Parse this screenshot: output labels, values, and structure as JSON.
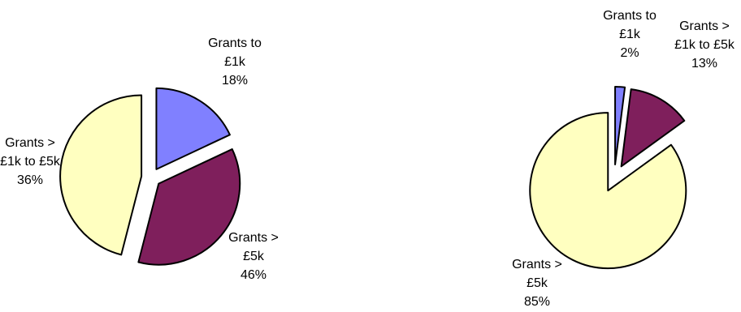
{
  "chart_data": [
    {
      "type": "pie",
      "title": "",
      "exploded": true,
      "slices": [
        {
          "lines": [
            "Grants to",
            "£1k",
            "18%"
          ],
          "value": 18,
          "color": "#8080ff"
        },
        {
          "lines": [
            "Grants >",
            "£1k to £5k",
            "36%"
          ],
          "value": 36,
          "color": "#7f1f5c"
        },
        {
          "lines": [
            "Grants >",
            "£5k",
            "46%"
          ],
          "value": 46,
          "color": "#ffffc0"
        }
      ]
    },
    {
      "type": "pie",
      "title": "",
      "exploded": true,
      "slices": [
        {
          "lines": [
            "Grants to",
            "£1k",
            "2%"
          ],
          "value": 2,
          "color": "#8080ff"
        },
        {
          "lines": [
            "Grants >",
            "£1k to £5k",
            "13%"
          ],
          "value": 13,
          "color": "#7f1f5c"
        },
        {
          "lines": [
            "Grants >",
            "£5k",
            "85%"
          ],
          "value": 85,
          "color": "#ffffc0"
        }
      ]
    }
  ]
}
